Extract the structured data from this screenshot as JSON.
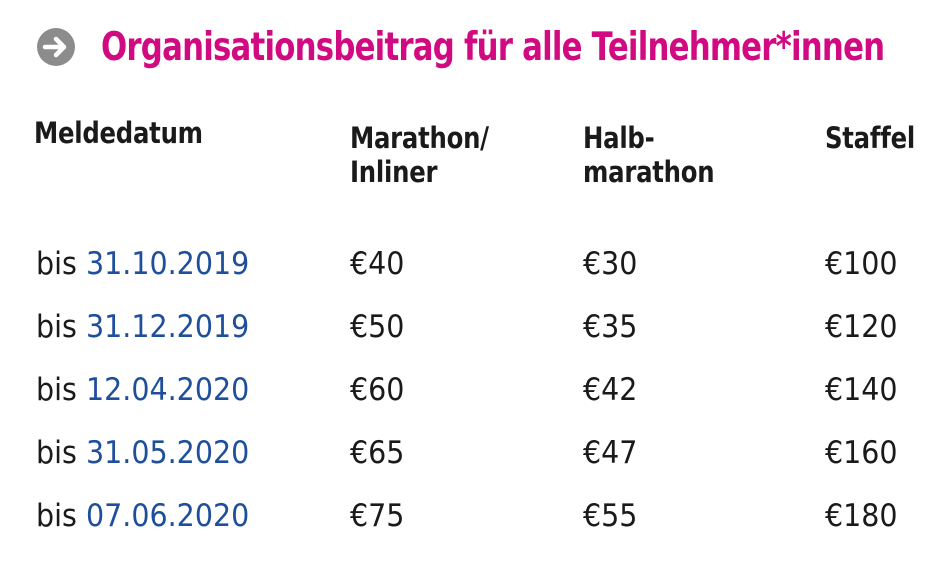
{
  "colors": {
    "title": "#d10a82",
    "date_link": "#1f4f9c",
    "text": "#1a1a1a",
    "arrow_bg": "#8c8c8c"
  },
  "header": {
    "icon": "arrow-right-circle-icon",
    "title": "Organisationsbeitrag für alle Teilnehmer*innen"
  },
  "table": {
    "columns": [
      [
        "Meldedatum"
      ],
      [
        "Marathon/",
        "Inliner"
      ],
      [
        "Halb-",
        "marathon"
      ],
      [
        "Staffel"
      ]
    ],
    "rows": [
      {
        "prefix": "bis",
        "date": "31.10.2019",
        "marathon": "€40",
        "halbmarathon": "€30",
        "staffel": "€100"
      },
      {
        "prefix": "bis",
        "date": "31.12.2019",
        "marathon": "€50",
        "halbmarathon": "€35",
        "staffel": "€120"
      },
      {
        "prefix": "bis",
        "date": "12.04.2020",
        "marathon": "€60",
        "halbmarathon": "€42",
        "staffel": "€140"
      },
      {
        "prefix": "bis",
        "date": "31.05.2020",
        "marathon": "€65",
        "halbmarathon": "€47",
        "staffel": "€160"
      },
      {
        "prefix": "bis",
        "date": "07.06.2020",
        "marathon": "€75",
        "halbmarathon": "€55",
        "staffel": "€180"
      }
    ]
  }
}
